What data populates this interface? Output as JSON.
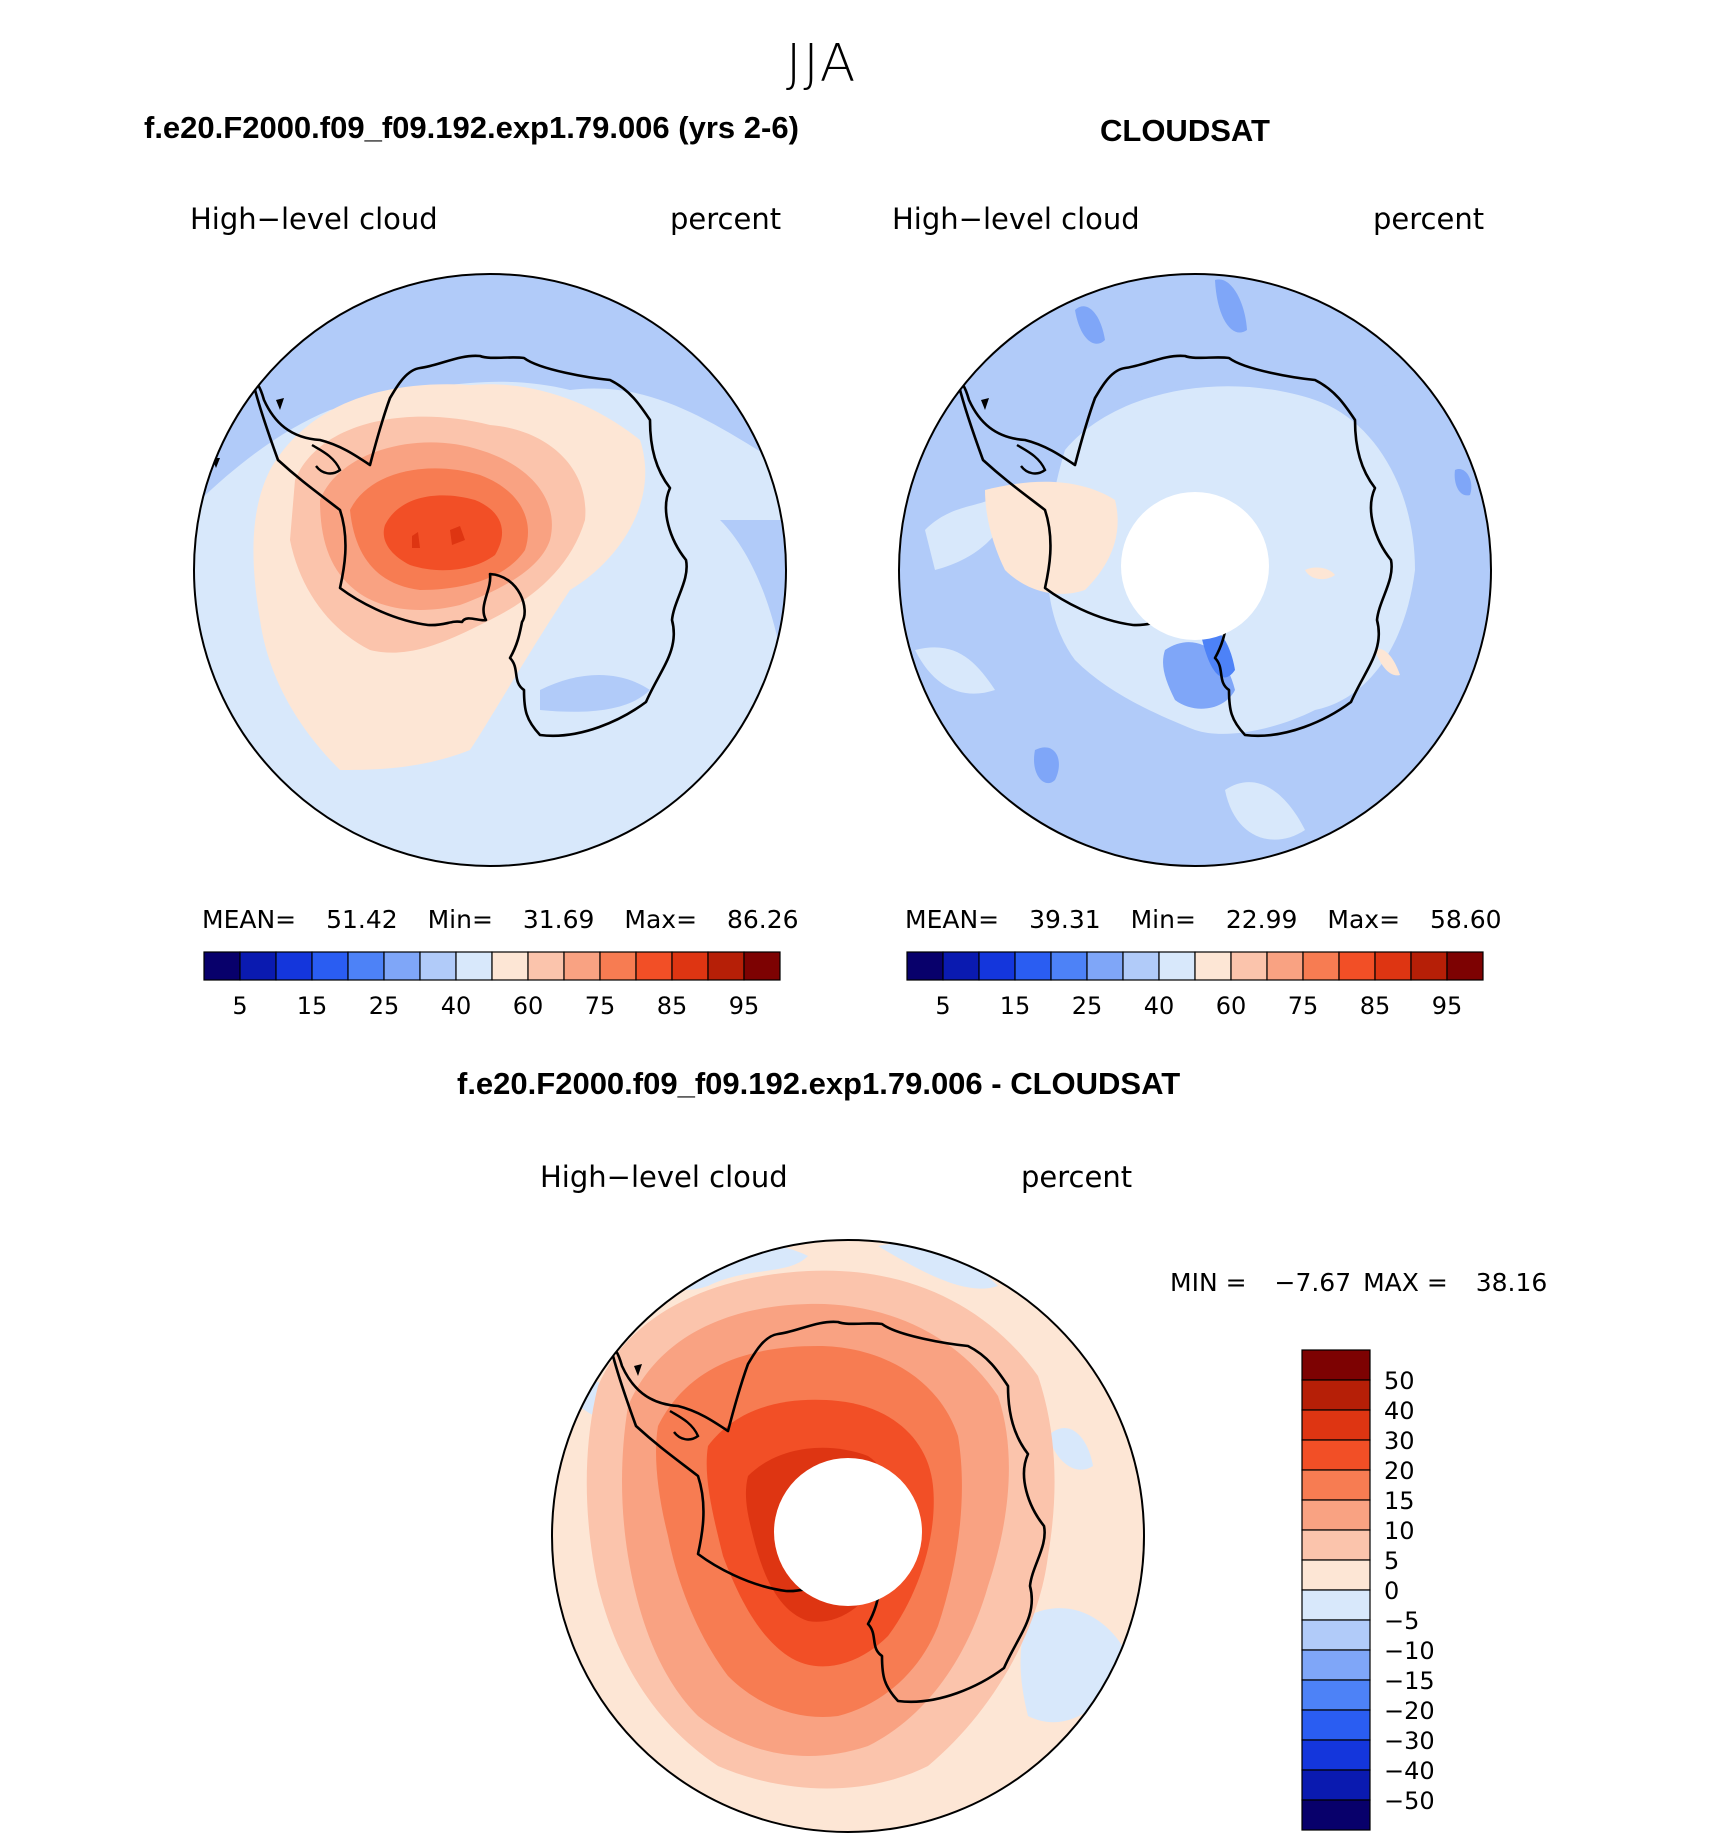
{
  "season": "JJA",
  "panel_left": {
    "case_title": "f.e20.F2000.f09_f09.192.exp1.79.006 (yrs 2-6)",
    "variable": "High−level cloud",
    "units": "percent",
    "stats": {
      "mean_label": "MEAN=",
      "mean": "51.42",
      "min_label": "Min=",
      "min": "31.69",
      "max_label": "Max=",
      "max": "86.26"
    }
  },
  "panel_right": {
    "case_title": "CLOUDSAT",
    "variable": "High−level cloud",
    "units": "percent",
    "stats": {
      "mean_label": "MEAN=",
      "mean": "39.31",
      "min_label": "Min=",
      "min": "22.99",
      "max_label": "Max=",
      "max": "58.60"
    }
  },
  "panel_diff": {
    "case_title": "f.e20.F2000.f09_f09.192.exp1.79.006 - CLOUDSAT",
    "variable": "High−level cloud",
    "units": "percent",
    "stats": {
      "min_label": "MIN =",
      "min": "−7.67",
      "max_label": "MAX =",
      "max": "38.16"
    }
  },
  "colorbar_abs": {
    "colors": [
      "#08006b",
      "#0a1ab0",
      "#1436dc",
      "#2a5df2",
      "#4d82f7",
      "#7fa6f8",
      "#b1cbf9",
      "#d8e8fb",
      "#fde6d5",
      "#fbc4ac",
      "#f9a282",
      "#f77c52",
      "#f24f26",
      "#de3512",
      "#b61f07",
      "#7d0202"
    ],
    "tick_labels": [
      "5",
      "15",
      "25",
      "40",
      "60",
      "75",
      "85",
      "95"
    ]
  },
  "colorbar_diff": {
    "colors": [
      "#7d0202",
      "#b61f07",
      "#de3512",
      "#f24f26",
      "#f77c52",
      "#f9a282",
      "#fbc4ac",
      "#fde6d5",
      "#d8e8fb",
      "#b1cbf9",
      "#7fa6f8",
      "#4d82f7",
      "#2a5df2",
      "#1436dc",
      "#0a1ab0",
      "#08006b"
    ],
    "tick_labels": [
      "50",
      "40",
      "30",
      "20",
      "15",
      "10",
      "5",
      "0",
      "−5",
      "−10",
      "−15",
      "−20",
      "−30",
      "−40",
      "−50"
    ]
  },
  "chart_data": [
    {
      "type": "heatmap",
      "title": "f.e20.F2000.f09_f09.192.exp1.79.006 (yrs 2-6)",
      "variable": "High-level cloud",
      "units": "percent",
      "projection": "south polar stereographic",
      "mean": 51.42,
      "min": 31.69,
      "max": 86.26,
      "levels": [
        5,
        10,
        15,
        20,
        25,
        30,
        40,
        50,
        60,
        70,
        75,
        80,
        85,
        90,
        95
      ]
    },
    {
      "type": "heatmap",
      "title": "CLOUDSAT",
      "variable": "High-level cloud",
      "units": "percent",
      "projection": "south polar stereographic",
      "mean": 39.31,
      "min": 22.99,
      "max": 58.6,
      "levels": [
        5,
        10,
        15,
        20,
        25,
        30,
        40,
        50,
        60,
        70,
        75,
        80,
        85,
        90,
        95
      ]
    },
    {
      "type": "heatmap",
      "title": "f.e20.F2000.f09_f09.192.exp1.79.006 - CLOUDSAT",
      "variable": "High-level cloud",
      "units": "percent",
      "projection": "south polar stereographic",
      "min": -7.67,
      "max": 38.16,
      "levels": [
        -50,
        -40,
        -30,
        -20,
        -15,
        -10,
        -5,
        0,
        5,
        10,
        15,
        20,
        30,
        40,
        50
      ]
    }
  ]
}
